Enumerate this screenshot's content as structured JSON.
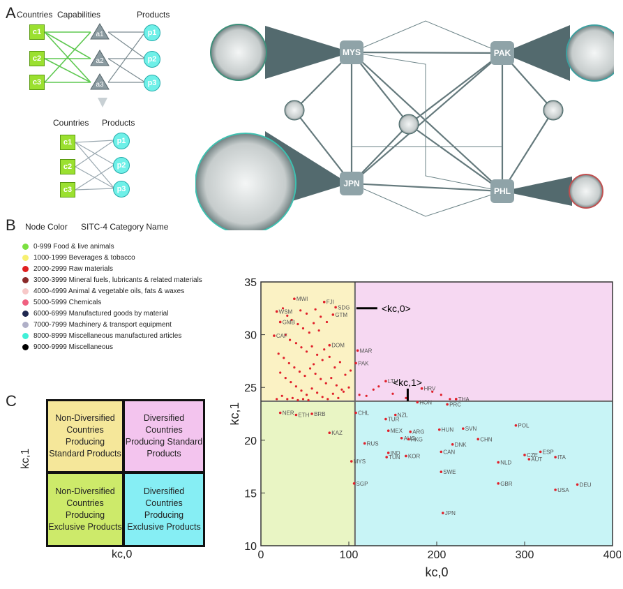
{
  "panel_a": {
    "letter": "A",
    "top_headers": {
      "countries": "Countries",
      "capabilities": "Capabilities",
      "products": "Products"
    },
    "bottom_headers": {
      "countries": "Countries",
      "products": "Products"
    },
    "country_nodes": [
      "c1",
      "c2",
      "c3"
    ],
    "capability_nodes": [
      "a1",
      "a2",
      "a3"
    ],
    "product_nodes": [
      "p1",
      "p2",
      "p3"
    ]
  },
  "network": {
    "nodes": [
      "MYS",
      "PAK",
      "JPN",
      "PHL"
    ]
  },
  "panel_b": {
    "letter": "B",
    "header_node_color": "Node Color",
    "header_category": "SITC-4 Category Name",
    "items": [
      {
        "label": "0-999 Food & live animals",
        "color": "#7be040"
      },
      {
        "label": "1000-1999 Beverages &  tobacco",
        "color": "#f7f070"
      },
      {
        "label": "2000-2999 Raw materials",
        "color": "#e02020"
      },
      {
        "label": "3000-3999 Mineral fuels, lubricants & related materials",
        "color": "#8a2a2a"
      },
      {
        "label": "4000-4999 Animal & vegetable oils, fats & waxes",
        "color": "#f7c8c8"
      },
      {
        "label": "5000-5999 Chemicals",
        "color": "#f06080"
      },
      {
        "label": "6000-6999 Manufactured goods by material",
        "color": "#202850"
      },
      {
        "label": "7000-7999 Machinery & transport equipment",
        "color": "#b0b0c8"
      },
      {
        "label": "8000-8999 Miscellaneous manufactured articles",
        "color": "#40f0d8"
      },
      {
        "label": "9000-9999 Miscellaneous",
        "color": "#000000"
      }
    ]
  },
  "panel_c": {
    "letter": "C",
    "ylabel": "kc,1",
    "xlabel": "kc,0",
    "quadrants": {
      "top_left": "Non-Diversified Countries Producing Standard Products",
      "top_right": "Diversified Countries Producing Standard Products",
      "bottom_left": "Non-Diversified Countries Producing Exclusive Products",
      "bottom_right": "Diversified Countries Producing Exclusive Products"
    }
  },
  "chart_data": {
    "type": "scatter",
    "xlabel": "kc,0",
    "ylabel": "kc,1",
    "xlim": [
      0,
      400
    ],
    "ylim": [
      10,
      35
    ],
    "xticks": [
      0,
      100,
      200,
      300,
      400
    ],
    "yticks": [
      10,
      15,
      20,
      25,
      30,
      35
    ],
    "mean_x": 107,
    "mean_y": 23.7,
    "mean_x_label": "<kc,0>",
    "mean_y_label": "<kc,1>",
    "region_colors": {
      "top_left": "#fbf2c4",
      "top_right": "#f6d8f2",
      "bottom_left": "#e9f5c4",
      "bottom_right": "#c8f4f6"
    },
    "labeled_points": [
      {
        "label": "MWI",
        "x": 38,
        "y": 33.4
      },
      {
        "label": "FJI",
        "x": 72,
        "y": 33.1
      },
      {
        "label": "SDG",
        "x": 85,
        "y": 32.6
      },
      {
        "label": "GTM",
        "x": 82,
        "y": 31.9
      },
      {
        "label": "WSM",
        "x": 18,
        "y": 32.2
      },
      {
        "label": "GMB",
        "x": 22,
        "y": 31.2
      },
      {
        "label": "CAF",
        "x": 15,
        "y": 29.9
      },
      {
        "label": "DOM",
        "x": 78,
        "y": 29.0
      },
      {
        "label": "MAR",
        "x": 110,
        "y": 28.5
      },
      {
        "label": "PAK",
        "x": 108,
        "y": 27.3
      },
      {
        "label": "LTU",
        "x": 142,
        "y": 25.6
      },
      {
        "label": "HRV",
        "x": 183,
        "y": 24.9
      },
      {
        "label": "HON",
        "x": 178,
        "y": 23.6
      },
      {
        "label": "THA",
        "x": 222,
        "y": 23.9
      },
      {
        "label": "PRC",
        "x": 212,
        "y": 23.4
      },
      {
        "label": "CHL",
        "x": 108,
        "y": 22.6
      },
      {
        "label": "NZL",
        "x": 153,
        "y": 22.4
      },
      {
        "label": "TUR",
        "x": 142,
        "y": 22.0
      },
      {
        "label": "MEX",
        "x": 145,
        "y": 20.9
      },
      {
        "label": "ARG",
        "x": 170,
        "y": 20.8
      },
      {
        "label": "AUS",
        "x": 160,
        "y": 20.2
      },
      {
        "label": "HKG",
        "x": 168,
        "y": 20.1
      },
      {
        "label": "HUN",
        "x": 203,
        "y": 21.0
      },
      {
        "label": "SVN",
        "x": 230,
        "y": 21.1
      },
      {
        "label": "POL",
        "x": 290,
        "y": 21.4
      },
      {
        "label": "CHN",
        "x": 247,
        "y": 20.1
      },
      {
        "label": "DNK",
        "x": 218,
        "y": 19.6
      },
      {
        "label": "CAN",
        "x": 205,
        "y": 18.9
      },
      {
        "label": "RUS",
        "x": 118,
        "y": 19.7
      },
      {
        "label": "IND",
        "x": 145,
        "y": 18.8
      },
      {
        "label": "TUN",
        "x": 143,
        "y": 18.4
      },
      {
        "label": "KOR",
        "x": 165,
        "y": 18.5
      },
      {
        "label": "CZE",
        "x": 300,
        "y": 18.6
      },
      {
        "label": "ESP",
        "x": 318,
        "y": 18.9
      },
      {
        "label": "AUT",
        "x": 305,
        "y": 18.2
      },
      {
        "label": "ITA",
        "x": 335,
        "y": 18.4
      },
      {
        "label": "NLD",
        "x": 270,
        "y": 17.9
      },
      {
        "label": "SWE",
        "x": 205,
        "y": 17.0
      },
      {
        "label": "MYS",
        "x": 103,
        "y": 18.0
      },
      {
        "label": "SGP",
        "x": 106,
        "y": 15.9
      },
      {
        "label": "GBR",
        "x": 270,
        "y": 15.9
      },
      {
        "label": "DEU",
        "x": 360,
        "y": 15.8
      },
      {
        "label": "USA",
        "x": 335,
        "y": 15.3
      },
      {
        "label": "JPN",
        "x": 207,
        "y": 13.1
      },
      {
        "label": "KAZ",
        "x": 78,
        "y": 20.7
      },
      {
        "label": "NER",
        "x": 22,
        "y": 22.6
      },
      {
        "label": "ETH",
        "x": 40,
        "y": 22.4
      },
      {
        "label": "BRB",
        "x": 58,
        "y": 22.5
      }
    ],
    "dense_points": [
      [
        25,
        32.5
      ],
      [
        30,
        31.8
      ],
      [
        35,
        31.4
      ],
      [
        42,
        31.0
      ],
      [
        48,
        30.6
      ],
      [
        55,
        30.2
      ],
      [
        60,
        31.1
      ],
      [
        66,
        30.4
      ],
      [
        28,
        30.0
      ],
      [
        33,
        29.5
      ],
      [
        40,
        29.2
      ],
      [
        46,
        28.8
      ],
      [
        52,
        28.4
      ],
      [
        58,
        28.9
      ],
      [
        64,
        28.1
      ],
      [
        70,
        27.6
      ],
      [
        20,
        28.2
      ],
      [
        26,
        27.8
      ],
      [
        32,
        27.3
      ],
      [
        38,
        26.9
      ],
      [
        44,
        26.5
      ],
      [
        50,
        26.1
      ],
      [
        56,
        26.8
      ],
      [
        62,
        26.3
      ],
      [
        68,
        25.8
      ],
      [
        74,
        25.4
      ],
      [
        80,
        25.9
      ],
      [
        86,
        25.2
      ],
      [
        92,
        24.8
      ],
      [
        22,
        26.4
      ],
      [
        28,
        25.9
      ],
      [
        34,
        25.5
      ],
      [
        40,
        25.1
      ],
      [
        46,
        24.7
      ],
      [
        52,
        24.3
      ],
      [
        58,
        24.9
      ],
      [
        64,
        24.5
      ],
      [
        70,
        24.1
      ],
      [
        76,
        23.9
      ],
      [
        82,
        24.4
      ],
      [
        88,
        24.0
      ],
      [
        94,
        24.6
      ],
      [
        100,
        25.0
      ],
      [
        24,
        24.2
      ],
      [
        30,
        23.9
      ],
      [
        36,
        24.0
      ],
      [
        42,
        23.8
      ],
      [
        48,
        23.9
      ],
      [
        54,
        23.8
      ],
      [
        18,
        23.9
      ],
      [
        60,
        27.2
      ],
      [
        72,
        28.6
      ],
      [
        78,
        27.9
      ],
      [
        84,
        26.9
      ],
      [
        90,
        27.4
      ],
      [
        96,
        26.2
      ],
      [
        102,
        26.6
      ],
      [
        112,
        24.3
      ],
      [
        120,
        24.2
      ],
      [
        128,
        24.8
      ],
      [
        134,
        25.1
      ],
      [
        150,
        24.4
      ],
      [
        165,
        24.0
      ],
      [
        195,
        24.6
      ],
      [
        205,
        24.3
      ],
      [
        215,
        23.9
      ],
      [
        45,
        32.3
      ],
      [
        52,
        32.0
      ],
      [
        62,
        32.4
      ],
      [
        68,
        31.7
      ],
      [
        75,
        31.2
      ]
    ]
  }
}
